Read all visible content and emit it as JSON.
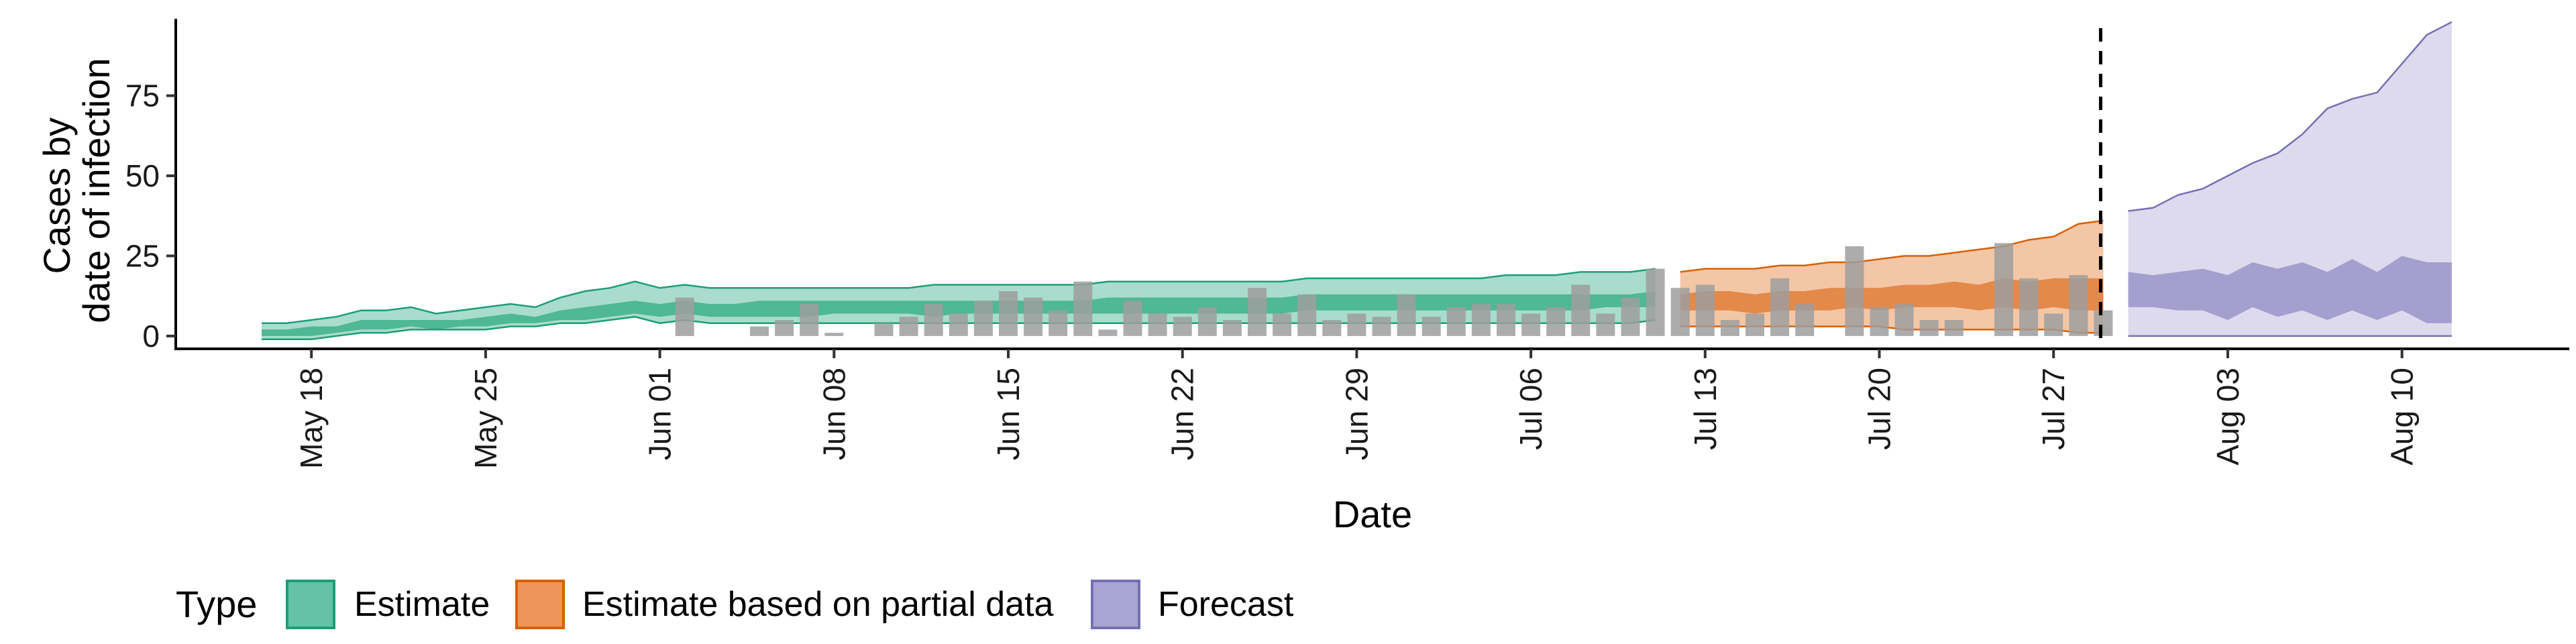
{
  "chart_data": {
    "type": "area",
    "xlabel": "Date",
    "ylabel_lines": [
      "Cases by",
      "date of infection"
    ],
    "ylim": [
      -4,
      99
    ],
    "y_ticks": [
      0,
      25,
      50,
      75
    ],
    "x_ticks": [
      "May 18",
      "May 25",
      "Jun 01",
      "Jun 08",
      "Jun 15",
      "Jun 22",
      "Jun 29",
      "Jul 06",
      "Jul 13",
      "Jul 20",
      "Jul 27",
      "Aug 03",
      "Aug 10"
    ],
    "x_start_date": "2020-05-16",
    "forecast_date": "2020-07-29",
    "legend": {
      "title": "Type",
      "position": "bottom",
      "entries": [
        {
          "label": "Estimate",
          "fill": "#66c2a5",
          "stroke": "#1b9e77"
        },
        {
          "label": "Estimate based on partial data",
          "fill": "#ec955a",
          "stroke": "#d95f02"
        },
        {
          "label": "Forecast",
          "fill": "#a9a5d3",
          "stroke": "#7570b3"
        }
      ]
    },
    "colors": {
      "estimate_outer": "#a9dccc",
      "estimate_inner": "#4fb894",
      "estimate_line": "#1b9e77",
      "partial_outer": "#f3c6a6",
      "partial_inner": "#e3894a",
      "partial_line": "#d95f02",
      "forecast_outer": "#dcdaec",
      "forecast_inner": "#a49fcf",
      "forecast_line": "#7570b3",
      "bars": "#9e9e9e"
    },
    "reported_cases": [
      {
        "date": "2020-06-02",
        "value": 12
      },
      {
        "date": "2020-06-03",
        "value": 0
      },
      {
        "date": "2020-06-04",
        "value": 0
      },
      {
        "date": "2020-06-05",
        "value": 3
      },
      {
        "date": "2020-06-06",
        "value": 5
      },
      {
        "date": "2020-06-07",
        "value": 10
      },
      {
        "date": "2020-06-08",
        "value": 1
      },
      {
        "date": "2020-06-09",
        "value": 0
      },
      {
        "date": "2020-06-10",
        "value": 4
      },
      {
        "date": "2020-06-11",
        "value": 6
      },
      {
        "date": "2020-06-12",
        "value": 10
      },
      {
        "date": "2020-06-13",
        "value": 7
      },
      {
        "date": "2020-06-14",
        "value": 11
      },
      {
        "date": "2020-06-15",
        "value": 14
      },
      {
        "date": "2020-06-16",
        "value": 12
      },
      {
        "date": "2020-06-17",
        "value": 8
      },
      {
        "date": "2020-06-18",
        "value": 17
      },
      {
        "date": "2020-06-19",
        "value": 2
      },
      {
        "date": "2020-06-20",
        "value": 11
      },
      {
        "date": "2020-06-21",
        "value": 7
      },
      {
        "date": "2020-06-22",
        "value": 6
      },
      {
        "date": "2020-06-23",
        "value": 9
      },
      {
        "date": "2020-06-24",
        "value": 5
      },
      {
        "date": "2020-06-25",
        "value": 15
      },
      {
        "date": "2020-06-26",
        "value": 7
      },
      {
        "date": "2020-06-27",
        "value": 13
      },
      {
        "date": "2020-06-28",
        "value": 5
      },
      {
        "date": "2020-06-29",
        "value": 7
      },
      {
        "date": "2020-06-30",
        "value": 6
      },
      {
        "date": "2020-07-01",
        "value": 13
      },
      {
        "date": "2020-07-02",
        "value": 6
      },
      {
        "date": "2020-07-03",
        "value": 9
      },
      {
        "date": "2020-07-04",
        "value": 10
      },
      {
        "date": "2020-07-05",
        "value": 10
      },
      {
        "date": "2020-07-06",
        "value": 7
      },
      {
        "date": "2020-07-07",
        "value": 9
      },
      {
        "date": "2020-07-08",
        "value": 16
      },
      {
        "date": "2020-07-09",
        "value": 7
      },
      {
        "date": "2020-07-10",
        "value": 12
      },
      {
        "date": "2020-07-11",
        "value": 21
      },
      {
        "date": "2020-07-12",
        "value": 15
      },
      {
        "date": "2020-07-13",
        "value": 16
      },
      {
        "date": "2020-07-14",
        "value": 5
      },
      {
        "date": "2020-07-15",
        "value": 7
      },
      {
        "date": "2020-07-16",
        "value": 18
      },
      {
        "date": "2020-07-17",
        "value": 10
      },
      {
        "date": "2020-07-18",
        "value": 0
      },
      {
        "date": "2020-07-19",
        "value": 28
      },
      {
        "date": "2020-07-20",
        "value": 9
      },
      {
        "date": "2020-07-21",
        "value": 10
      },
      {
        "date": "2020-07-22",
        "value": 5
      },
      {
        "date": "2020-07-23",
        "value": 5
      },
      {
        "date": "2020-07-24",
        "value": 0
      },
      {
        "date": "2020-07-25",
        "value": 29
      },
      {
        "date": "2020-07-26",
        "value": 18
      },
      {
        "date": "2020-07-27",
        "value": 7
      },
      {
        "date": "2020-07-28",
        "value": 19
      },
      {
        "date": "2020-07-29",
        "value": 8
      }
    ],
    "bands": [
      {
        "type": "Estimate",
        "start": "2020-05-16",
        "end": "2020-07-11",
        "outer_upper": [
          4,
          4,
          5,
          6,
          8,
          8,
          9,
          7,
          8,
          9,
          10,
          9,
          12,
          14,
          15,
          17,
          15,
          16,
          15,
          15,
          15,
          15,
          15,
          15,
          15,
          15,
          15,
          16,
          16,
          16,
          16,
          16,
          16,
          16,
          17,
          17,
          17,
          17,
          17,
          17,
          17,
          17,
          18,
          18,
          18,
          18,
          18,
          18,
          18,
          18,
          19,
          19,
          19,
          20,
          20,
          20,
          21
        ],
        "inner_upper": [
          2,
          2,
          3,
          3,
          5,
          5,
          5,
          5,
          5,
          6,
          7,
          6,
          8,
          9,
          10,
          11,
          10,
          11,
          10,
          10,
          11,
          11,
          11,
          11,
          11,
          11,
          11,
          11,
          11,
          11,
          11,
          11,
          11,
          11,
          12,
          12,
          12,
          12,
          12,
          12,
          12,
          12,
          13,
          13,
          13,
          13,
          13,
          13,
          13,
          13,
          13,
          13,
          13,
          13,
          13,
          13,
          14
        ],
        "inner_lower": [
          0,
          0,
          0,
          1,
          2,
          2,
          3,
          2,
          3,
          3,
          4,
          4,
          5,
          5,
          6,
          7,
          6,
          7,
          6,
          6,
          6,
          6,
          6,
          7,
          7,
          7,
          7,
          6,
          7,
          7,
          7,
          7,
          7,
          7,
          7,
          7,
          7,
          7,
          7,
          7,
          7,
          7,
          8,
          8,
          8,
          8,
          8,
          8,
          8,
          8,
          8,
          8,
          8,
          8,
          9,
          9,
          9
        ],
        "outer_lower": [
          -1,
          -1,
          -1,
          0,
          1,
          1,
          2,
          2,
          2,
          2,
          3,
          3,
          4,
          4,
          5,
          6,
          4,
          5,
          4,
          4,
          4,
          4,
          4,
          4,
          4,
          4,
          4,
          4,
          4,
          4,
          4,
          4,
          4,
          4,
          4,
          4,
          4,
          4,
          4,
          4,
          4,
          4,
          4,
          4,
          4,
          4,
          4,
          4,
          4,
          4,
          4,
          4,
          4,
          4,
          4,
          4,
          5
        ]
      },
      {
        "type": "Estimate based on partial data",
        "start": "2020-07-12",
        "end": "2020-07-29",
        "outer_upper": [
          20,
          21,
          21,
          21,
          22,
          22,
          23,
          23,
          24,
          25,
          25,
          26,
          27,
          28,
          30,
          31,
          35,
          36
        ],
        "inner_upper": [
          13,
          14,
          14,
          13,
          14,
          14,
          15,
          15,
          15,
          16,
          16,
          17,
          16,
          18,
          17,
          18,
          18,
          18
        ],
        "inner_lower": [
          8,
          8,
          8,
          7,
          8,
          8,
          8,
          9,
          8,
          9,
          9,
          9,
          8,
          9,
          8,
          9,
          8,
          8
        ],
        "outer_lower": [
          3,
          3,
          3,
          3,
          3,
          3,
          3,
          3,
          3,
          2,
          2,
          2,
          2,
          2,
          2,
          2,
          1,
          1
        ]
      },
      {
        "type": "Forecast",
        "start": "2020-07-30",
        "end": "2020-08-12",
        "outer_upper": [
          39,
          40,
          44,
          46,
          50,
          54,
          57,
          63,
          71,
          74,
          76,
          85,
          94,
          98
        ],
        "inner_upper": [
          20,
          19,
          20,
          21,
          19,
          23,
          21,
          23,
          20,
          24,
          20,
          25,
          23,
          23
        ],
        "inner_lower": [
          9,
          9,
          8,
          8,
          5,
          9,
          6,
          8,
          5,
          8,
          5,
          8,
          4,
          4
        ],
        "outer_lower": [
          0,
          0,
          0,
          0,
          0,
          0,
          0,
          0,
          0,
          0,
          0,
          0,
          0,
          0
        ]
      }
    ]
  }
}
